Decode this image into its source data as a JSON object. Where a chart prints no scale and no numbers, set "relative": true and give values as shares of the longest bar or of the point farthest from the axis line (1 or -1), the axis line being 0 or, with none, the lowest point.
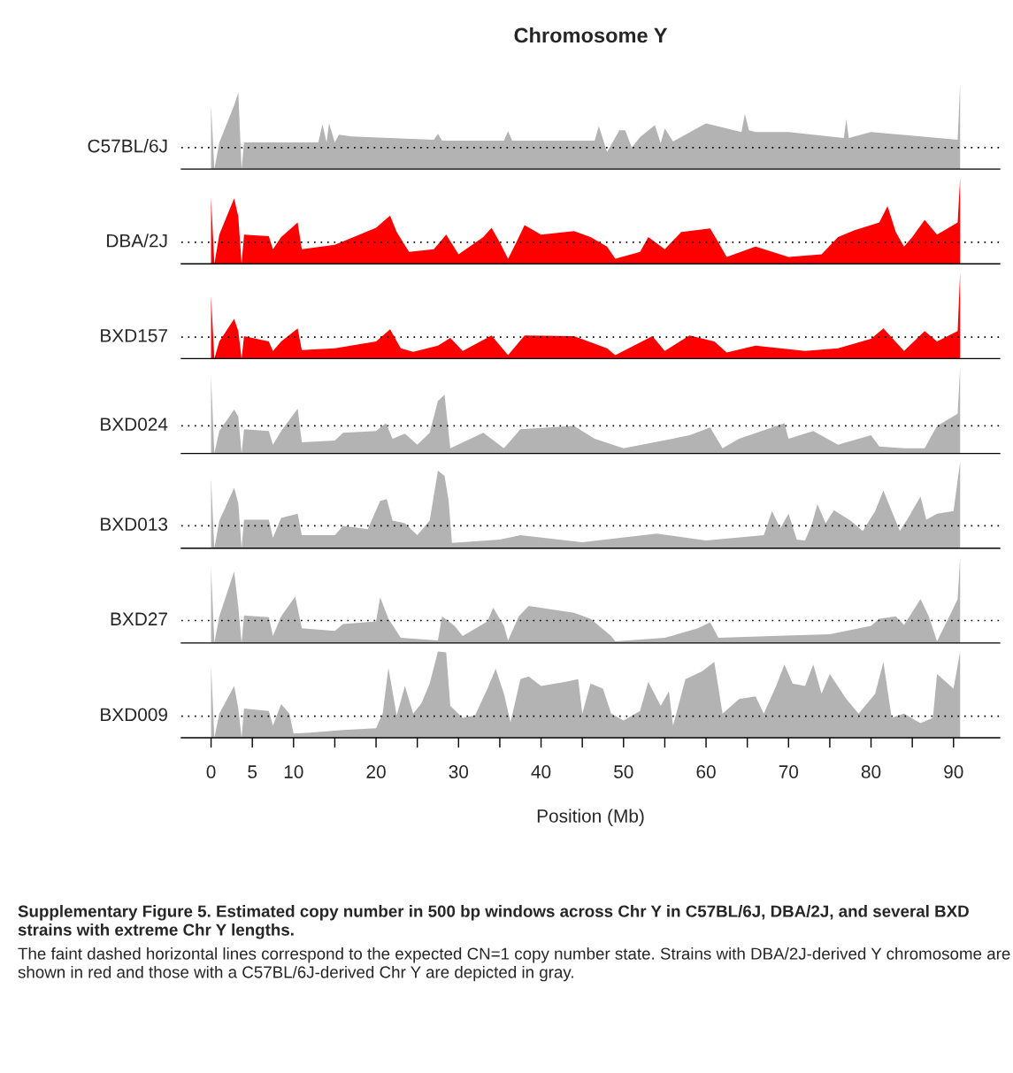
{
  "chart_data": [
    {
      "type": "area",
      "title": "Chromosome Y",
      "ylabel": "C57BL/6J",
      "relative": true,
      "tick_labels": false,
      "xlim": [
        -3.6,
        95.6
      ],
      "color": "#b3b3b3",
      "ref_lines": [
        {
          "axis": "y",
          "value": 0.25,
          "color": "#000000",
          "line_style": "dotted"
        }
      ],
      "x": [
        0,
        0.4,
        1,
        2.8,
        3.3,
        3.7,
        4,
        13,
        13.5,
        14,
        14.3,
        15,
        15.5,
        17,
        27,
        27.5,
        28,
        35.5,
        36,
        36.5,
        46.5,
        47,
        48,
        49.5,
        50.2,
        51,
        52,
        53.8,
        54.5,
        55,
        56,
        59,
        60,
        64.3,
        64.7,
        65.2,
        66,
        70,
        76.7,
        77,
        77.3,
        80,
        90.5,
        90.8
      ],
      "values": [
        0.74,
        0,
        0.31,
        0.74,
        0.89,
        0,
        0.31,
        0.31,
        0.52,
        0.31,
        0.53,
        0.31,
        0.4,
        0.38,
        0.34,
        0.41,
        0.33,
        0.33,
        0.44,
        0.33,
        0.33,
        0.5,
        0.2,
        0.45,
        0.45,
        0.25,
        0.37,
        0.51,
        0.3,
        0.47,
        0.32,
        0.48,
        0.53,
        0.43,
        0.64,
        0.45,
        0.43,
        0.43,
        0.36,
        0.58,
        0.36,
        0.43,
        0.34,
        1.0
      ]
    },
    {
      "type": "area",
      "ylabel": "DBA/2J",
      "relative": true,
      "tick_labels": false,
      "xlim": [
        -3.6,
        95.6
      ],
      "color": "#ff0000",
      "ref_lines": [
        {
          "axis": "y",
          "value": 0.25,
          "color": "#000000",
          "line_style": "dotted"
        }
      ],
      "x": [
        0,
        0.4,
        1,
        2.8,
        3.3,
        3.7,
        4,
        7,
        7.5,
        8.5,
        10.5,
        11,
        15,
        20,
        21.7,
        22.5,
        24,
        27,
        28.5,
        30,
        33,
        34,
        35,
        36,
        37,
        38,
        40,
        44,
        46,
        48,
        49,
        52,
        53,
        55,
        57,
        60.5,
        61.5,
        62.5,
        66,
        70,
        74,
        76,
        78,
        81,
        82,
        83,
        84,
        85,
        86.5,
        88,
        90.5,
        90.8
      ],
      "values": [
        0.77,
        0,
        0.34,
        0.76,
        0.55,
        0,
        0.34,
        0.32,
        0.17,
        0.31,
        0.48,
        0.17,
        0.22,
        0.42,
        0.56,
        0.37,
        0.14,
        0.17,
        0.34,
        0.11,
        0.31,
        0.42,
        0.25,
        0.06,
        0.25,
        0.45,
        0.34,
        0.38,
        0.31,
        0.2,
        0.06,
        0.14,
        0.31,
        0.17,
        0.37,
        0.41,
        0.25,
        0.08,
        0.2,
        0.08,
        0.11,
        0.31,
        0.39,
        0.48,
        0.67,
        0.37,
        0.2,
        0.31,
        0.51,
        0.34,
        0.48,
        1.0
      ]
    },
    {
      "type": "area",
      "ylabel": "BXD157",
      "relative": true,
      "tick_labels": false,
      "xlim": [
        -3.6,
        95.6
      ],
      "color": "#ff0000",
      "ref_lines": [
        {
          "axis": "y",
          "value": 0.25,
          "color": "#000000",
          "line_style": "dotted"
        }
      ],
      "x": [
        0,
        0.4,
        1,
        2.8,
        3.3,
        3.7,
        4,
        7,
        7.5,
        8.5,
        10.5,
        11,
        15,
        20,
        21.7,
        23,
        24.5,
        27.5,
        29,
        30.5,
        34,
        36,
        38,
        44,
        48,
        49,
        53.5,
        55,
        58,
        61,
        62.5,
        66,
        72,
        76,
        80,
        81.5,
        84,
        86.5,
        88,
        90.5,
        90.8
      ],
      "values": [
        0.73,
        0,
        0.2,
        0.46,
        0.32,
        0,
        0.26,
        0.2,
        0.09,
        0.2,
        0.35,
        0.1,
        0.12,
        0.2,
        0.34,
        0.12,
        0.08,
        0.15,
        0.24,
        0.09,
        0.27,
        0.04,
        0.27,
        0.26,
        0.12,
        0.04,
        0.26,
        0.09,
        0.27,
        0.2,
        0.07,
        0.15,
        0.09,
        0.12,
        0.23,
        0.35,
        0.09,
        0.32,
        0.2,
        0.32,
        1.0
      ]
    },
    {
      "type": "area",
      "ylabel": "BXD024",
      "relative": true,
      "tick_labels": false,
      "xlim": [
        -3.6,
        95.6
      ],
      "color": "#b3b3b3",
      "ref_lines": [
        {
          "axis": "y",
          "value": 0.32,
          "color": "#000000",
          "line_style": "dotted"
        }
      ],
      "x": [
        0,
        0.4,
        1,
        2.8,
        3.3,
        3.7,
        4,
        7,
        7.5,
        8.5,
        10.5,
        11,
        15,
        16,
        20,
        21.2,
        22,
        23.5,
        25,
        26.5,
        27.5,
        28.3,
        29,
        33,
        35.5,
        37.5,
        44,
        46.5,
        50,
        58,
        60.5,
        62,
        64,
        69.5,
        70,
        73,
        76,
        80,
        81,
        84,
        86.5,
        88,
        90.5,
        90.8
      ],
      "values": [
        0.89,
        0,
        0.26,
        0.51,
        0.43,
        0,
        0.28,
        0.26,
        0.1,
        0.26,
        0.52,
        0.13,
        0.15,
        0.24,
        0.26,
        0.35,
        0.17,
        0.23,
        0.1,
        0.24,
        0.61,
        0.68,
        0.06,
        0.24,
        0.06,
        0.28,
        0.32,
        0.17,
        0.06,
        0.21,
        0.3,
        0.06,
        0.17,
        0.35,
        0.17,
        0.26,
        0.1,
        0.21,
        0.08,
        0.06,
        0.06,
        0.32,
        0.46,
        1.0
      ]
    },
    {
      "type": "area",
      "ylabel": "BXD013",
      "relative": true,
      "tick_labels": false,
      "xlim": [
        -3.6,
        95.6
      ],
      "color": "#b3b3b3",
      "ref_lines": [
        {
          "axis": "y",
          "value": 0.26,
          "color": "#000000",
          "line_style": "dotted"
        }
      ],
      "x": [
        0,
        0.4,
        1,
        2.8,
        3.3,
        3.7,
        4,
        7,
        7.5,
        8.5,
        10.5,
        11,
        15,
        16,
        19,
        20.5,
        21.3,
        22,
        23.5,
        25,
        26.5,
        27.5,
        28.3,
        28.8,
        29.2,
        35,
        37.5,
        45,
        54,
        60,
        67,
        68,
        69,
        70,
        71,
        72,
        72.8,
        73.5,
        74.5,
        75.5,
        77.5,
        79,
        80.5,
        81.5,
        82.5,
        83.5,
        84.5,
        86,
        86.7,
        88,
        90,
        90.8
      ],
      "values": [
        0.81,
        0,
        0.32,
        0.7,
        0.52,
        0,
        0.33,
        0.33,
        0.12,
        0.35,
        0.4,
        0.15,
        0.15,
        0.26,
        0.22,
        0.55,
        0.57,
        0.32,
        0.29,
        0.15,
        0.32,
        0.9,
        0.84,
        0.55,
        0.06,
        0.1,
        0.15,
        0.07,
        0.17,
        0.09,
        0.15,
        0.43,
        0.23,
        0.4,
        0.1,
        0.09,
        0.27,
        0.51,
        0.29,
        0.44,
        0.32,
        0.2,
        0.43,
        0.67,
        0.43,
        0.2,
        0.35,
        0.6,
        0.33,
        0.4,
        0.43,
        1.0
      ]
    },
    {
      "type": "area",
      "ylabel": "BXD27",
      "relative": true,
      "tick_labels": false,
      "xlim": [
        -3.6,
        95.6
      ],
      "color": "#b3b3b3",
      "ref_lines": [
        {
          "axis": "y",
          "value": 0.26,
          "color": "#000000",
          "line_style": "dotted"
        }
      ],
      "x": [
        0,
        0.4,
        1,
        2.8,
        3.3,
        3.7,
        4,
        7,
        7.5,
        8.5,
        10.2,
        11,
        15,
        16,
        20,
        20.5,
        21.5,
        23,
        27.5,
        28,
        29.5,
        30.5,
        33.5,
        34.2,
        35.5,
        36,
        37.3,
        38.5,
        44,
        46,
        48.5,
        49,
        55,
        59,
        60.5,
        61.5,
        68,
        75,
        80,
        81,
        83,
        84,
        86,
        87,
        88,
        89.5,
        90.5,
        90.8
      ],
      "values": [
        0.87,
        0,
        0.31,
        0.83,
        0.42,
        0,
        0.32,
        0.3,
        0.08,
        0.31,
        0.54,
        0.17,
        0.14,
        0.22,
        0.25,
        0.53,
        0.28,
        0.06,
        0.03,
        0.31,
        0.2,
        0.08,
        0.25,
        0.41,
        0.2,
        0.03,
        0.31,
        0.43,
        0.35,
        0.28,
        0.08,
        0.02,
        0.06,
        0.17,
        0.24,
        0.06,
        0.08,
        0.1,
        0.2,
        0.28,
        0.31,
        0.21,
        0.51,
        0.31,
        0.02,
        0.31,
        0.51,
        1.0
      ]
    },
    {
      "type": "area",
      "ylabel": "BXD009",
      "xlabel": "Position (Mb)",
      "relative": true,
      "tick_labels": "x",
      "xlim": [
        -3.6,
        95.6
      ],
      "color": "#b3b3b3",
      "ref_lines": [
        {
          "axis": "y",
          "value": 0.25,
          "color": "#000000",
          "line_style": "dotted"
        }
      ],
      "xticks": [
        0,
        5,
        10,
        {
          "value": 15,
          "label": null
        },
        20,
        {
          "value": 25,
          "label": null
        },
        30,
        {
          "value": 35,
          "label": null
        },
        40,
        {
          "value": 45,
          "label": null
        },
        50,
        {
          "value": 55,
          "label": null
        },
        60,
        {
          "value": 65,
          "label": null
        },
        70,
        {
          "value": 75,
          "label": null
        },
        80,
        {
          "value": 85,
          "label": null
        },
        90
      ],
      "annotations": [
        "Supplementary Figure 5. Estimated copy number in 500 bp windows across Chr Y in C57BL/6J, DBA/2J, and several BXD strains with extreme Chr Y lengths.",
        "The faint dashed horizontal lines correspond to the expected CN=1 copy number state. Strains with DBA/2J-derived Y chromosome are shown in red and those with a C57BL/6J-derived Chr Y are depicted in gray."
      ],
      "x": [
        0,
        0.4,
        1,
        2.8,
        3.3,
        3.7,
        4,
        7,
        7.5,
        8.5,
        9.5,
        10,
        12,
        16,
        20,
        20.8,
        21.5,
        22.5,
        23.5,
        24.5,
        25.5,
        26.5,
        27.5,
        28.5,
        29,
        30.5,
        32,
        33.5,
        34.5,
        35.5,
        36.3,
        37.5,
        38.5,
        40,
        43,
        44.5,
        45,
        46,
        47.5,
        48.5,
        50,
        52,
        53,
        54.5,
        55.5,
        56,
        57.5,
        59.5,
        61,
        62,
        64,
        66,
        67,
        68.5,
        69.5,
        70.5,
        72,
        73,
        74,
        75,
        77,
        78.5,
        80.5,
        81.5,
        82.5,
        84,
        86,
        87.5,
        88,
        90,
        90.8
      ],
      "values": [
        0.84,
        0,
        0.28,
        0.6,
        0.34,
        0,
        0.34,
        0.31,
        0.14,
        0.39,
        0.28,
        0.05,
        0.06,
        0.09,
        0.11,
        0.28,
        0.81,
        0.26,
        0.6,
        0.28,
        0.4,
        0.63,
        1.0,
        0.99,
        0.37,
        0.23,
        0.26,
        0.57,
        0.8,
        0.51,
        0.18,
        0.68,
        0.71,
        0.6,
        0.65,
        0.68,
        0.28,
        0.63,
        0.57,
        0.28,
        0.2,
        0.31,
        0.65,
        0.37,
        0.54,
        0.14,
        0.68,
        0.77,
        0.88,
        0.28,
        0.45,
        0.48,
        0.28,
        0.6,
        0.85,
        0.63,
        0.6,
        0.85,
        0.51,
        0.74,
        0.45,
        0.28,
        0.51,
        0.88,
        0.23,
        0.28,
        0.17,
        0.23,
        0.74,
        0.57,
        1.0
      ]
    }
  ]
}
